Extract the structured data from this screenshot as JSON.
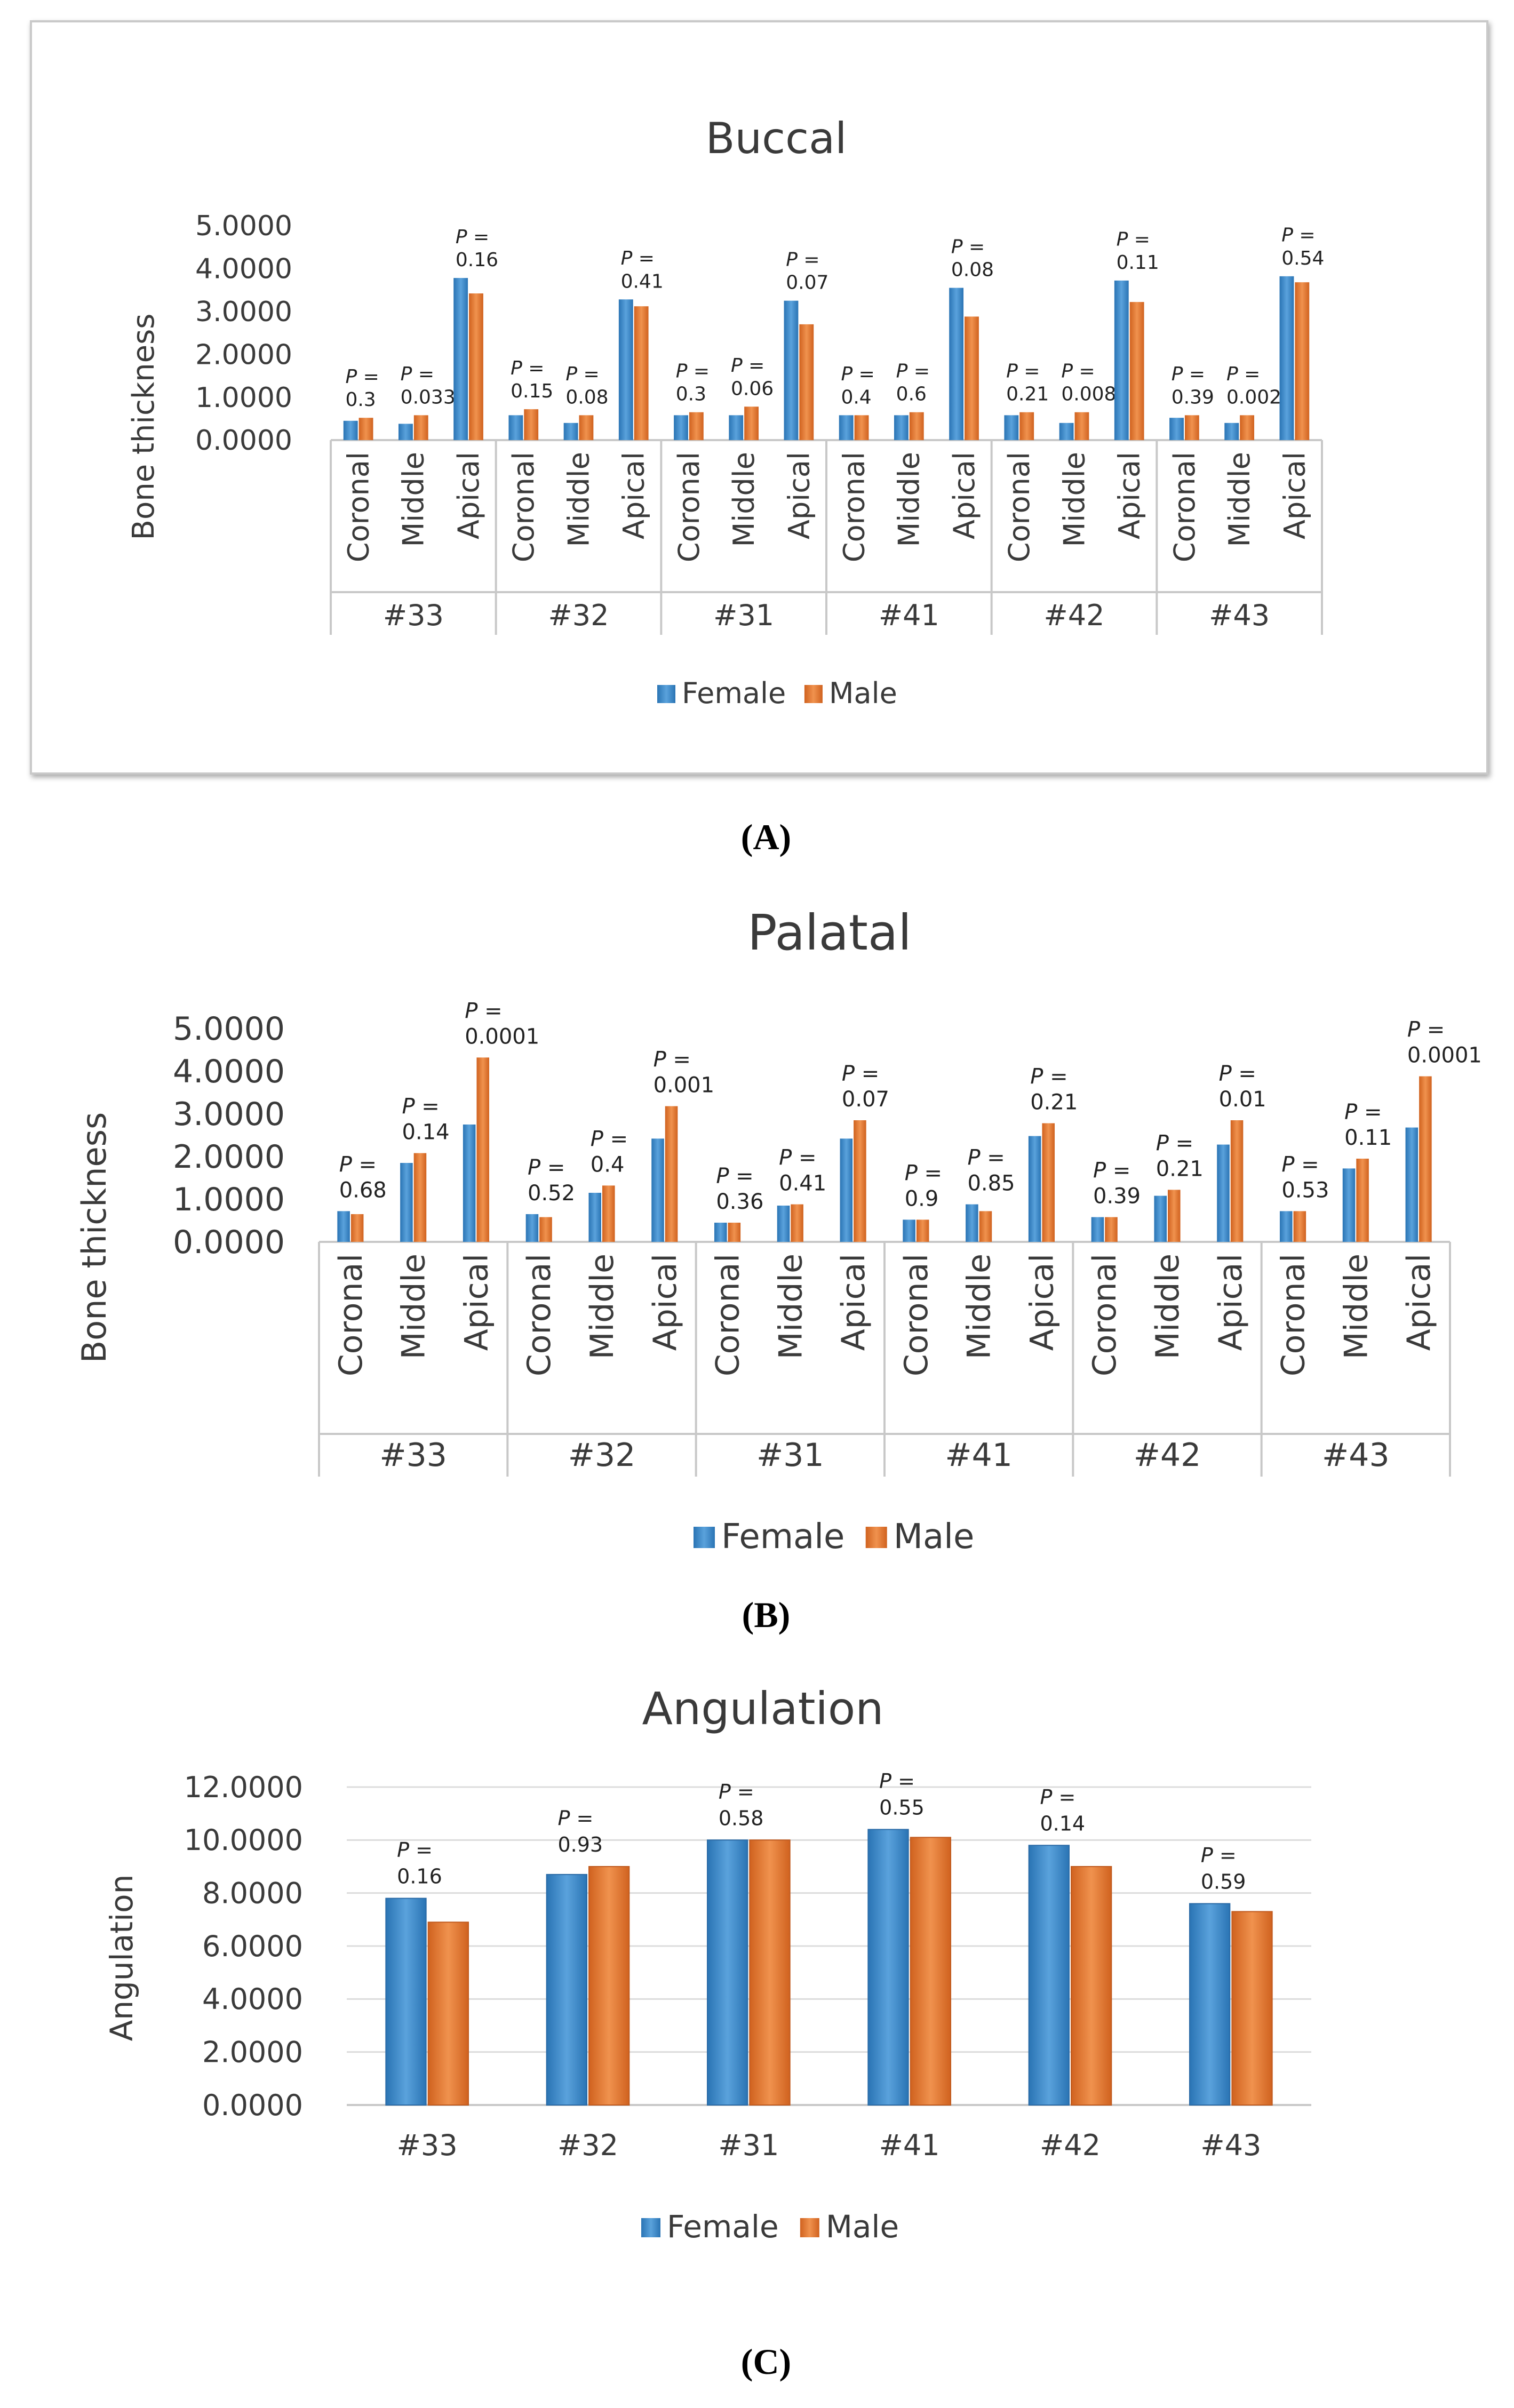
{
  "colors": {
    "female": "#2e80c4",
    "male": "#e2702a",
    "axis": "#c8c8c8",
    "text": "#3a3a3a"
  },
  "chart_data": [
    {
      "id": "A",
      "type": "bar",
      "title": "Buccal",
      "panel_label": "(A)",
      "xlabel": "",
      "ylabel": "Bone thickness",
      "ylim": [
        0,
        5
      ],
      "yticks": [
        "0.0000",
        "1.0000",
        "2.0000",
        "3.0000",
        "4.0000",
        "5.0000"
      ],
      "groups": [
        "#33",
        "#32",
        "#31",
        "#41",
        "#42",
        "#43"
      ],
      "subcategories": [
        "Coronal",
        "Middle",
        "Apical"
      ],
      "p_prefix": "P =",
      "legend": [
        "Female",
        "Male"
      ],
      "series": [
        {
          "name": "Female",
          "values": [
            0.45,
            0.38,
            3.78,
            0.58,
            0.4,
            3.28,
            0.58,
            0.58,
            3.25,
            0.58,
            0.58,
            3.55,
            0.58,
            0.4,
            3.72,
            0.52,
            0.4,
            3.82
          ]
        },
        {
          "name": "Male",
          "values": [
            0.52,
            0.58,
            3.42,
            0.72,
            0.58,
            3.12,
            0.65,
            0.78,
            2.7,
            0.58,
            0.65,
            2.88,
            0.65,
            0.65,
            3.22,
            0.58,
            0.58,
            3.68
          ]
        }
      ],
      "p_values": [
        "0.3",
        "0.033",
        "0.16",
        "0.15",
        "0.08",
        "0.41",
        "0.3",
        "0.06",
        "0.07",
        "0.4",
        "0.6",
        "0.08",
        "0.21",
        "0.008",
        "0.11",
        "0.39",
        "0.002",
        "0.54"
      ]
    },
    {
      "id": "B",
      "type": "bar",
      "title": "Palatal",
      "panel_label": "(B)",
      "xlabel": "",
      "ylabel": "Bone thickness",
      "ylim": [
        0,
        5
      ],
      "yticks": [
        "0.0000",
        "1.0000",
        "2.0000",
        "3.0000",
        "4.0000",
        "5.0000"
      ],
      "groups": [
        "#33",
        "#32",
        "#31",
        "#41",
        "#42",
        "#43"
      ],
      "subcategories": [
        "Coronal",
        "Middle",
        "Apical"
      ],
      "p_prefix": "P =",
      "legend": [
        "Female",
        "Male"
      ],
      "series": [
        {
          "name": "Female",
          "values": [
            0.72,
            1.85,
            2.75,
            0.65,
            1.15,
            2.42,
            0.45,
            0.85,
            2.42,
            0.52,
            0.88,
            2.48,
            0.58,
            1.08,
            2.28,
            0.72,
            1.72,
            2.68
          ]
        },
        {
          "name": "Male",
          "values": [
            0.65,
            2.08,
            4.32,
            0.58,
            1.32,
            3.18,
            0.45,
            0.88,
            2.85,
            0.52,
            0.72,
            2.78,
            0.58,
            1.22,
            2.85,
            0.72,
            1.95,
            3.88
          ]
        }
      ],
      "p_values": [
        "0.68",
        "0.14",
        "0.0001",
        "0.52",
        "0.4",
        "0.001",
        "0.36",
        "0.41",
        "0.07",
        "0.9",
        "0.85",
        "0.21",
        "0.39",
        "0.21",
        "0.01",
        "0.53",
        "0.11",
        "0.0001"
      ]
    },
    {
      "id": "C",
      "type": "bar",
      "title": "Angulation",
      "panel_label": "(C)",
      "xlabel": "",
      "ylabel": "Angulation",
      "ylim": [
        0,
        12
      ],
      "yticks": [
        "0.0000",
        "2.0000",
        "4.0000",
        "6.0000",
        "8.0000",
        "10.0000",
        "12.0000"
      ],
      "categories": [
        "#33",
        "#32",
        "#31",
        "#41",
        "#42",
        "#43"
      ],
      "p_prefix": "P =",
      "legend": [
        "Female",
        "Male"
      ],
      "series": [
        {
          "name": "Female",
          "values": [
            7.8,
            8.7,
            10.0,
            10.4,
            9.8,
            7.6
          ]
        },
        {
          "name": "Male",
          "values": [
            6.9,
            9.0,
            10.0,
            10.1,
            9.0,
            7.3
          ]
        }
      ],
      "p_values": [
        "0.16",
        "0.93",
        "0.58",
        "0.55",
        "0.14",
        "0.59"
      ]
    }
  ]
}
